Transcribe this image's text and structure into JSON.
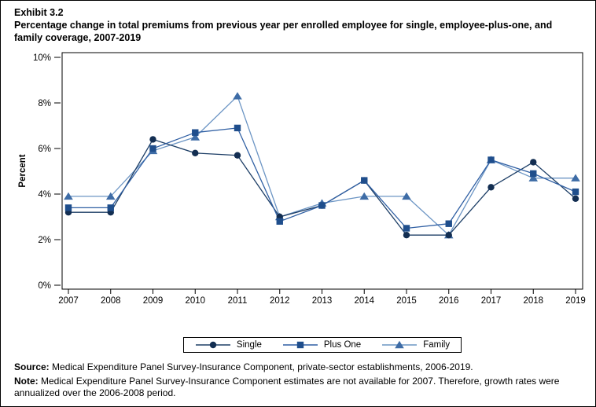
{
  "header": {
    "exhibit": "Exhibit 3.2",
    "title": "Percentage change in total premiums from previous year per enrolled employee for single, employee-plus-one, and family coverage, 2007-2019"
  },
  "chart_data": {
    "type": "line",
    "title": "Percentage change in total premiums from previous year per enrolled employee for single, employee-plus-one, and family coverage, 2007-2019",
    "x": [
      2007,
      2008,
      2009,
      2010,
      2011,
      2012,
      2013,
      2014,
      2015,
      2016,
      2017,
      2018,
      2019
    ],
    "xlabel": "",
    "ylabel": "Percent",
    "ylim": [
      0,
      10
    ],
    "yticks": [
      0,
      2,
      4,
      6,
      8,
      10
    ],
    "ytick_suffix": "%",
    "grid": "off",
    "legend_position": "bottom",
    "series": [
      {
        "name": "Single",
        "marker": "circle",
        "marker_color": "#132E52",
        "line_color": "#1D3E66",
        "values": [
          3.2,
          3.2,
          6.4,
          5.8,
          5.7,
          3.0,
          3.5,
          4.6,
          2.2,
          2.2,
          4.3,
          5.4,
          3.8
        ]
      },
      {
        "name": "Plus One",
        "marker": "square",
        "marker_color": "#1F4E8C",
        "line_color": "#2F5FA3",
        "values": [
          3.4,
          3.4,
          6.0,
          6.7,
          6.9,
          2.8,
          3.5,
          4.6,
          2.5,
          2.7,
          5.5,
          4.9,
          4.1
        ]
      },
      {
        "name": "Family",
        "marker": "triangle",
        "marker_color": "#3E6CA6",
        "line_color": "#6C95C4",
        "values": [
          3.9,
          3.9,
          5.9,
          6.5,
          8.3,
          3.0,
          3.6,
          3.9,
          3.9,
          2.2,
          5.5,
          4.7,
          4.7
        ]
      }
    ]
  },
  "footer": {
    "source_label": "Source:",
    "source_text": " Medical Expenditure Panel Survey-Insurance Component, private-sector establishments, 2006-2019.",
    "note_label": "Note:",
    "note_text": " Medical Expenditure Panel Survey-Insurance Component estimates are not available for 2007. Therefore, growth rates were annualized over the 2006-2008 period."
  }
}
